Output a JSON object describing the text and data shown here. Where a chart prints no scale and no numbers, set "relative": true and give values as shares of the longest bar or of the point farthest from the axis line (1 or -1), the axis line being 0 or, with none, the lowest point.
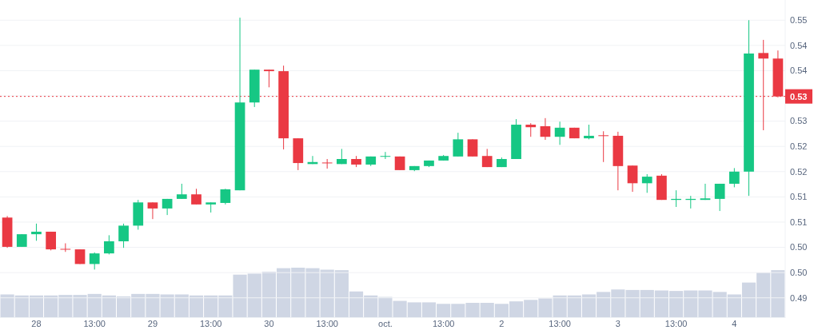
{
  "chart_data": [
    {
      "type": "candlestick",
      "categories": [
        null,
        null,
        "28",
        null,
        null,
        null,
        "13:00",
        null,
        null,
        null,
        "29",
        null,
        null,
        null,
        "13:00",
        null,
        null,
        null,
        "30",
        null,
        null,
        null,
        "13:00",
        null,
        null,
        null,
        "oct.",
        null,
        null,
        null,
        "13:00",
        null,
        null,
        null,
        "2",
        null,
        null,
        null,
        "13:00",
        null,
        null,
        null,
        "3",
        null,
        null,
        null,
        "13:00",
        null,
        null,
        null,
        "4",
        null,
        null,
        null
      ],
      "ohlc": [
        [
          0.5109,
          0.5112,
          0.5049,
          0.5051
        ],
        [
          0.5051,
          0.5076,
          0.5051,
          0.5076
        ],
        [
          0.5076,
          0.5097,
          0.5063,
          0.5081
        ],
        [
          0.5081,
          0.5081,
          0.5044,
          0.5046
        ],
        [
          0.5047,
          0.5058,
          0.5041,
          0.5046
        ],
        [
          0.5046,
          0.5046,
          0.5017,
          0.5017
        ],
        [
          0.5017,
          0.504,
          0.5006,
          0.5038
        ],
        [
          0.5038,
          0.5074,
          0.5036,
          0.5062
        ],
        [
          0.5062,
          0.5097,
          0.5049,
          0.5093
        ],
        [
          0.5093,
          0.5144,
          0.5085,
          0.5139
        ],
        [
          0.5139,
          0.5139,
          0.5106,
          0.5127
        ],
        [
          0.5127,
          0.5146,
          0.5114,
          0.5146
        ],
        [
          0.5146,
          0.5176,
          0.5146,
          0.5155
        ],
        [
          0.5155,
          0.5166,
          0.5135,
          0.5135
        ],
        [
          0.5135,
          0.5139,
          0.5119,
          0.5139
        ],
        [
          0.5138,
          0.5166,
          0.5135,
          0.5165
        ],
        [
          0.5163,
          0.5505,
          0.5163,
          0.5337
        ],
        [
          0.5337,
          0.5402,
          0.5328,
          0.5402
        ],
        [
          0.5402,
          0.5402,
          0.5367,
          0.5399
        ],
        [
          0.5399,
          0.541,
          0.5244,
          0.5266
        ],
        [
          0.5266,
          0.5266,
          0.5203,
          0.5217
        ],
        [
          0.5215,
          0.5231,
          0.5215,
          0.5219
        ],
        [
          0.5218,
          0.5225,
          0.5206,
          0.5217
        ],
        [
          0.5215,
          0.5245,
          0.5215,
          0.5225
        ],
        [
          0.5225,
          0.5231,
          0.5209,
          0.5214
        ],
        [
          0.5214,
          0.523,
          0.5211,
          0.523
        ],
        [
          0.523,
          0.5239,
          0.5225,
          0.5231
        ],
        [
          0.523,
          0.523,
          0.5203,
          0.5203
        ],
        [
          0.5203,
          0.5211,
          0.5201,
          0.5211
        ],
        [
          0.5211,
          0.5222,
          0.5209,
          0.5222
        ],
        [
          0.5222,
          0.5233,
          0.5222,
          0.5231
        ],
        [
          0.523,
          0.5277,
          0.523,
          0.5264
        ],
        [
          0.5264,
          0.5264,
          0.523,
          0.523
        ],
        [
          0.5231,
          0.5245,
          0.5209,
          0.5209
        ],
        [
          0.5209,
          0.5228,
          0.5209,
          0.5225
        ],
        [
          0.5225,
          0.5304,
          0.5225,
          0.5293
        ],
        [
          0.5293,
          0.5296,
          0.5269,
          0.5288
        ],
        [
          0.529,
          0.5306,
          0.5263,
          0.5269
        ],
        [
          0.5269,
          0.5299,
          0.5253,
          0.5287
        ],
        [
          0.5287,
          0.5287,
          0.5266,
          0.5266
        ],
        [
          0.5266,
          0.5293,
          0.5264,
          0.5271
        ],
        [
          0.5272,
          0.528,
          0.5219,
          0.5271
        ],
        [
          0.5271,
          0.5279,
          0.5163,
          0.5211
        ],
        [
          0.5212,
          0.5212,
          0.516,
          0.5177
        ],
        [
          0.5177,
          0.5195,
          0.5158,
          0.519
        ],
        [
          0.5192,
          0.5195,
          0.5144,
          0.5144
        ],
        [
          0.5144,
          0.5163,
          0.513,
          0.5146
        ],
        [
          0.5144,
          0.5152,
          0.5127,
          0.5146
        ],
        [
          0.5144,
          0.5176,
          0.5144,
          0.5147
        ],
        [
          0.5146,
          0.5176,
          0.5122,
          0.5176
        ],
        [
          0.5176,
          0.5207,
          0.5169,
          0.52
        ],
        [
          0.52,
          0.55,
          0.5152,
          0.5434
        ],
        [
          0.5435,
          0.5461,
          0.5282,
          0.5424
        ],
        [
          0.5424,
          0.544,
          0.5347,
          0.5349
        ]
      ],
      "colors": [
        "#ea3943",
        "#16c784",
        "#16c784",
        "#ea3943",
        "#ea3943",
        "#ea3943",
        "#16c784",
        "#16c784",
        "#16c784",
        "#16c784",
        "#ea3943",
        "#16c784",
        "#16c784",
        "#ea3943",
        "#16c784",
        "#16c784",
        "#16c784",
        "#16c784",
        "#ea3943",
        "#ea3943",
        "#ea3943",
        "#16c784",
        "#ea3943",
        "#16c784",
        "#ea3943",
        "#16c784",
        "#16c784",
        "#ea3943",
        "#16c784",
        "#16c784",
        "#16c784",
        "#16c784",
        "#ea3943",
        "#ea3943",
        "#16c784",
        "#16c784",
        "#ea3943",
        "#ea3943",
        "#16c784",
        "#ea3943",
        "#16c784",
        "#ea3943",
        "#ea3943",
        "#ea3943",
        "#16c784",
        "#ea3943",
        "#16c784",
        "#16c784",
        "#16c784",
        "#16c784",
        "#16c784",
        "#16c784",
        "#ea3943",
        "#ea3943"
      ],
      "ylim": [
        0.491,
        0.554
      ],
      "yticks": [
        0.55,
        {
          "value": 0.545,
          "label": "0.54"
        },
        0.54,
        {
          "value": 0.535,
          "label": null
        },
        0.53,
        {
          "value": 0.525,
          "label": "0.52"
        },
        0.52,
        {
          "value": 0.515,
          "label": "0.51"
        },
        0.51,
        {
          "value": 0.505,
          "label": "0.50"
        },
        {
          "value": 0.5,
          "label": "0.50"
        },
        {
          "value": 0.495,
          "label": "0.49"
        }
      ],
      "grid": "y",
      "ref_lines": [
        {
          "axis": "y",
          "value": 0.5349,
          "label": "0.53",
          "color": "#ea3943",
          "line_style": "dotted"
        }
      ]
    },
    {
      "type": "bar",
      "relative": true,
      "color": "#cfd6e4",
      "categories": [
        null,
        null,
        null,
        null,
        null,
        null,
        null,
        null,
        null,
        null,
        null,
        null,
        null,
        null,
        null,
        null,
        null,
        null,
        null,
        null,
        null,
        null,
        null,
        null,
        null,
        null,
        null,
        null,
        null,
        null,
        null,
        null,
        null,
        null,
        null,
        null,
        null,
        null,
        null,
        null,
        null,
        null,
        null,
        null,
        null,
        null,
        null,
        null,
        null,
        null,
        null,
        null,
        null,
        null
      ],
      "values": [
        0.46,
        0.44,
        0.44,
        0.44,
        0.45,
        0.45,
        0.47,
        0.44,
        0.42,
        0.47,
        0.47,
        0.46,
        0.46,
        0.44,
        0.44,
        0.44,
        0.86,
        0.88,
        0.92,
        0.99,
        1,
        0.99,
        0.96,
        0.95,
        0.52,
        0.44,
        0.41,
        0.33,
        0.3,
        0.3,
        0.27,
        0.27,
        0.29,
        0.29,
        0.27,
        0.32,
        0.35,
        0.38,
        0.44,
        0.44,
        0.46,
        0.51,
        0.56,
        0.55,
        0.55,
        0.54,
        0.53,
        0.54,
        0.54,
        0.51,
        0.46,
        0.7,
        0.9,
        0.95
      ]
    }
  ]
}
